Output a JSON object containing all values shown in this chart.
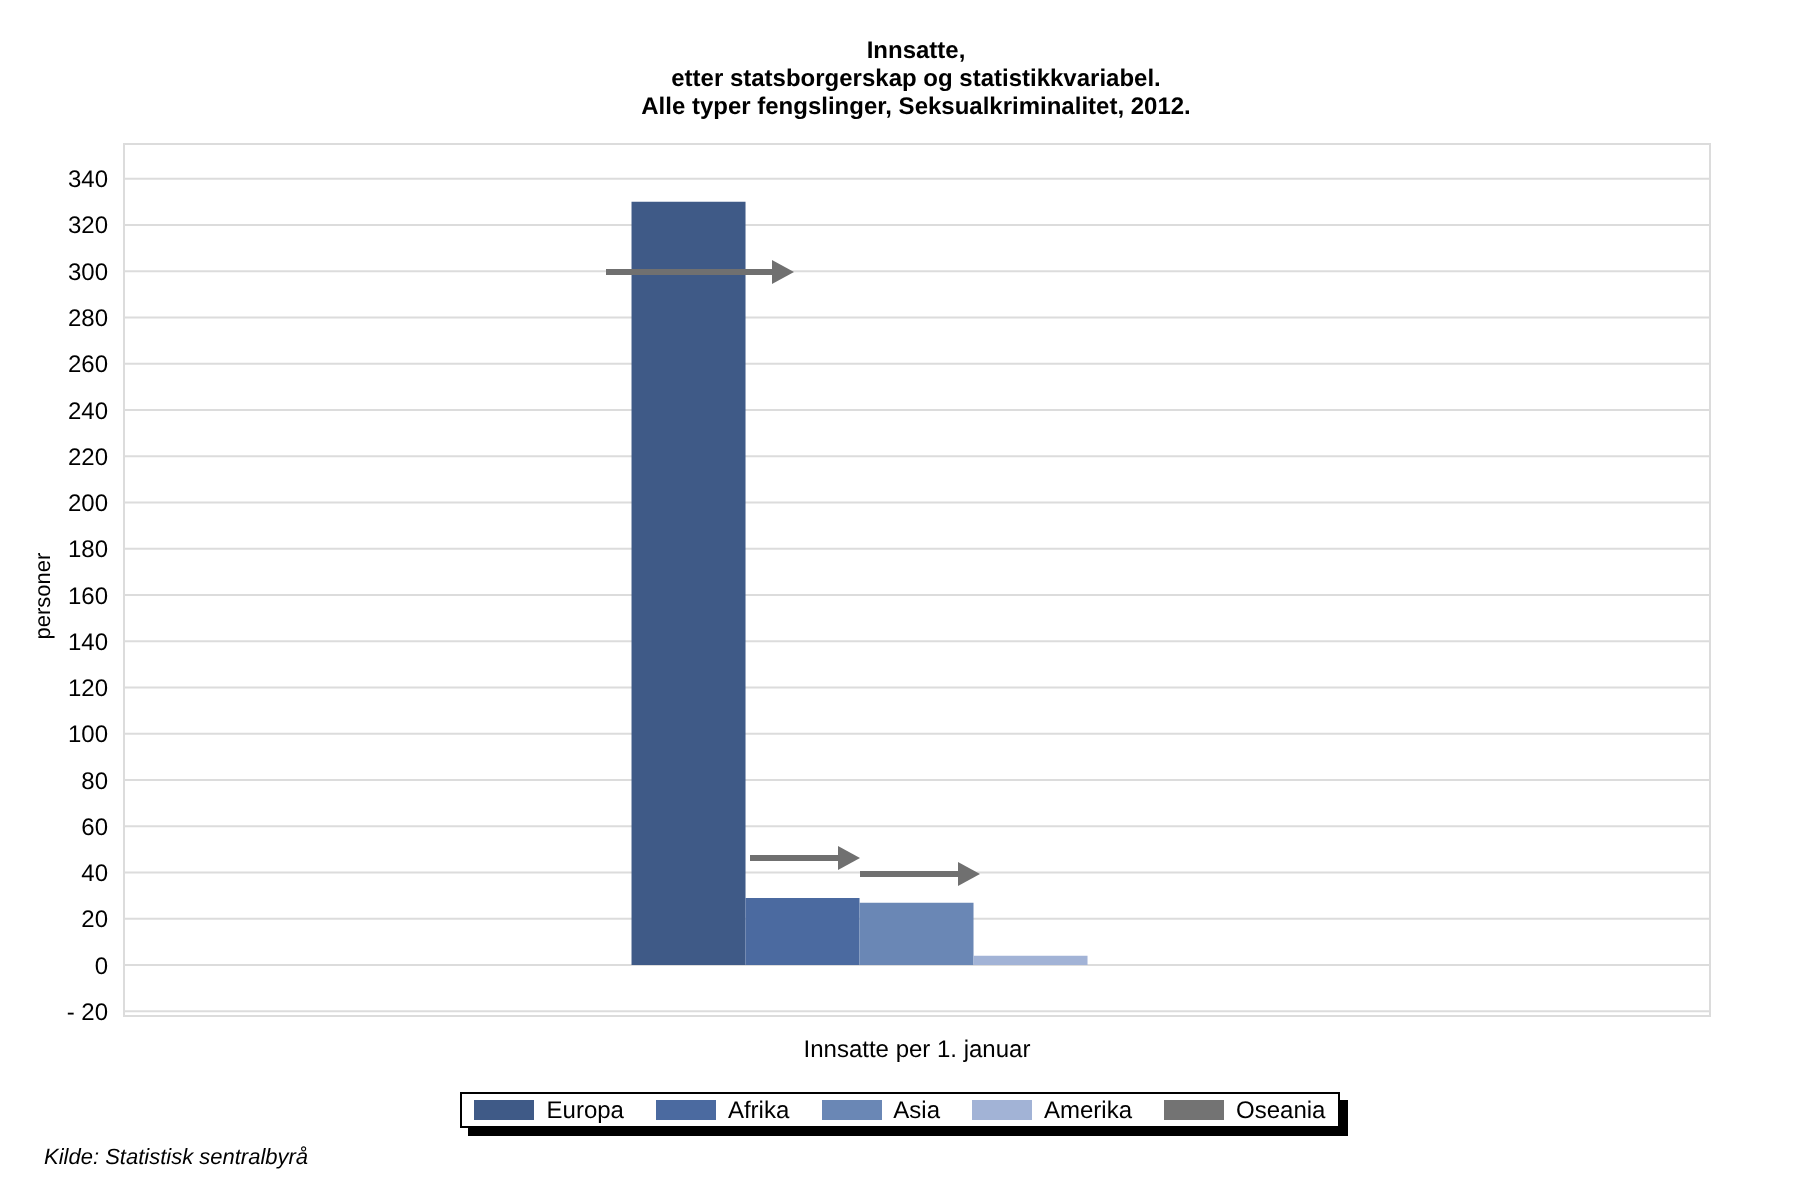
{
  "chart_data": {
    "type": "bar",
    "title": "Innsatte,\netter statsborgerskap og statistikkvariabel.\nAlle typer fengslinger, Seksualkriminalitet, 2012.",
    "ylabel": "personer",
    "categories": [
      "Innsatte per 1. januar"
    ],
    "series": [
      {
        "name": "Europa",
        "color": "#3f5a87",
        "values": [
          330
        ]
      },
      {
        "name": "Afrika",
        "color": "#4b6aa0",
        "values": [
          29
        ]
      },
      {
        "name": "Asia",
        "color": "#6a87b5",
        "values": [
          27
        ]
      },
      {
        "name": "Amerika",
        "color": "#a2b3d6",
        "values": [
          4
        ]
      },
      {
        "name": "Oseania",
        "color": "#737373",
        "values": [
          0
        ]
      }
    ],
    "ylim": [
      -22,
      355
    ],
    "yticks": [
      {
        "value": -20,
        "label": "- 20"
      },
      0,
      20,
      40,
      60,
      80,
      100,
      120,
      140,
      160,
      180,
      200,
      220,
      240,
      260,
      280,
      300,
      320,
      340
    ],
    "grid": "y",
    "legend": "bottom",
    "annotations": [
      "Kilde: Statistisk sentralbyrå"
    ]
  }
}
